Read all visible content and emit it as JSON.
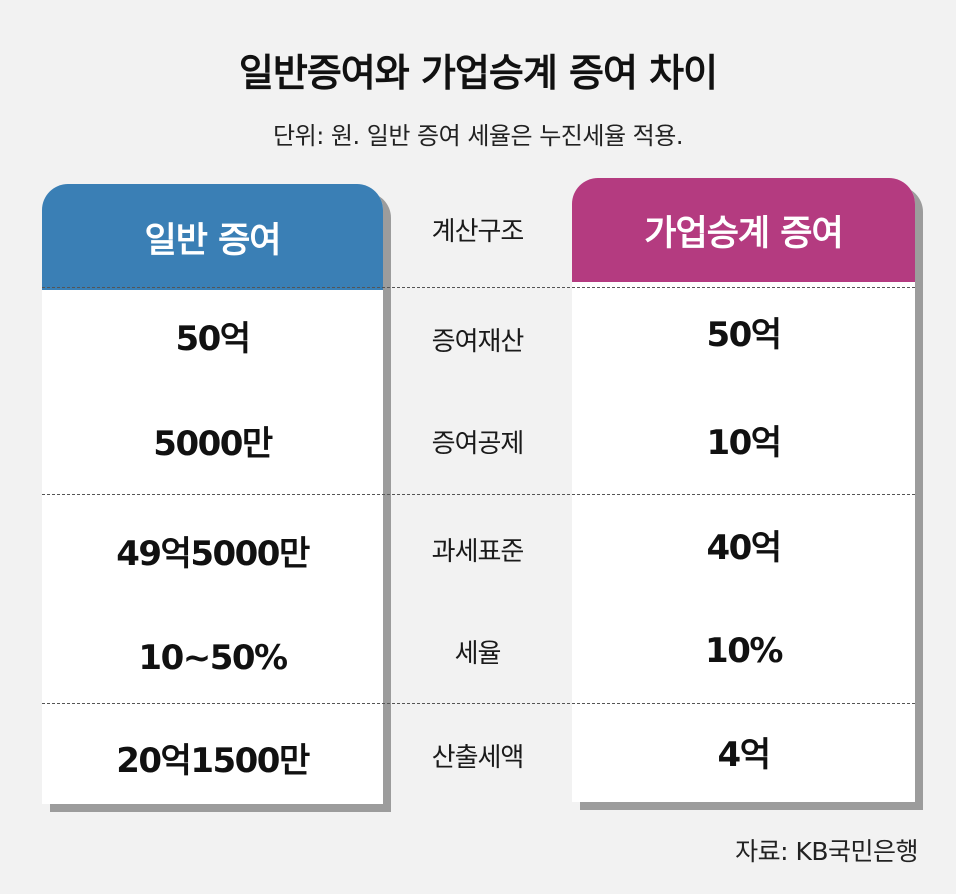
{
  "chart_data": {
    "type": "table",
    "title": "일반증여와 가업승계 증여 차이",
    "subtitle": "단위: 원. 일반 증여 세율은 누진세율 적용.",
    "columns": {
      "left_header": "일반 증여",
      "middle_header": "계산구조",
      "right_header": "가업승계 증여"
    },
    "rows": [
      {
        "label": "증여재산",
        "general": "50억",
        "succession": "50억"
      },
      {
        "label": "증여공제",
        "general": "5000만",
        "succession": "10억"
      },
      {
        "label": "과세표준",
        "general": "49억5000만",
        "succession": "40억"
      },
      {
        "label": "세율",
        "general": "10~50%",
        "succession": "10%"
      },
      {
        "label": "산출세액",
        "general": "20억1500만",
        "succession": "4억"
      }
    ],
    "source": "자료: KB국민은행"
  },
  "colors": {
    "left_header": "#3a7fb5",
    "right_header": "#b43b80",
    "background": "#f2f2f2"
  }
}
